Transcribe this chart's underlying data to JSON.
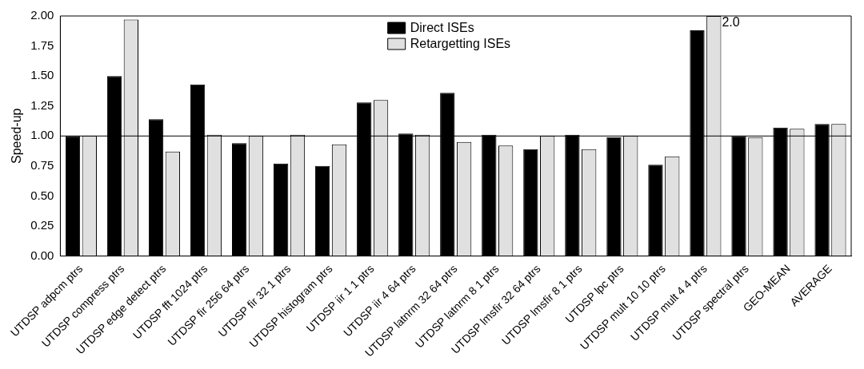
{
  "chart_data": {
    "type": "bar",
    "ylabel": "Speed-up",
    "categories": [
      "UTDSP adpcm ptrs",
      "UTDSP compress ptrs",
      "UTDSP edge detect ptrs",
      "UTDSP fft 1024 ptrs",
      "UTDSP fir 256 64 ptrs",
      "UTDSP fir 32 1 ptrs",
      "UTDSP histogram ptrs",
      "UTDSP iir 1 1 ptrs",
      "UTDSP iir 4 64 ptrs",
      "UTDSP latnrm 32 64 ptrs",
      "UTDSP latnrm 8 1 ptrs",
      "UTDSP lmsfir 32 64 ptrs",
      "UTDSP lmsfir 8 1 ptrs",
      "UTDSP lpc ptrs",
      "UTDSP mult 10 10 ptrs",
      "UTDSP mult 4 4 ptrs",
      "UTDSP spectral ptrs",
      "GEO-MEAN",
      "AVERAGE"
    ],
    "series": [
      {
        "name": "Direct ISEs",
        "color": "#000000",
        "values": [
          1.0,
          1.5,
          1.14,
          1.43,
          0.94,
          0.77,
          0.75,
          1.28,
          1.02,
          1.36,
          1.01,
          0.89,
          1.01,
          0.99,
          0.76,
          1.88,
          1.0,
          1.07,
          1.1
        ]
      },
      {
        "name": "Retargetting ISEs",
        "color": "#e0e0e0",
        "values": [
          1.0,
          1.97,
          0.87,
          1.01,
          1.0,
          1.01,
          0.93,
          1.3,
          1.01,
          0.95,
          0.92,
          1.0,
          0.89,
          1.0,
          0.83,
          2.0,
          0.99,
          1.06,
          1.1
        ],
        "value_labels": [
          null,
          null,
          null,
          null,
          null,
          null,
          null,
          null,
          null,
          null,
          null,
          null,
          null,
          null,
          null,
          "2.0",
          null,
          null,
          null
        ]
      }
    ],
    "ylim": [
      0,
      2
    ],
    "yticks": [
      {
        "value": 0,
        "label": "0.00"
      },
      {
        "value": 0.25,
        "label": "0.25"
      },
      {
        "value": 0.5,
        "label": "0.50"
      },
      {
        "value": 0.75,
        "label": "0.75"
      },
      {
        "value": 1,
        "label": "1.00"
      },
      {
        "value": 1.25,
        "label": "1.25"
      },
      {
        "value": 1.5,
        "label": "1.50"
      },
      {
        "value": 1.75,
        "label": "1.75"
      },
      {
        "value": 2,
        "label": "2.00"
      }
    ],
    "ref_lines": [
      {
        "axis": "y",
        "value": 1,
        "color": "#000000"
      }
    ],
    "grid": false,
    "legend": "top center"
  }
}
